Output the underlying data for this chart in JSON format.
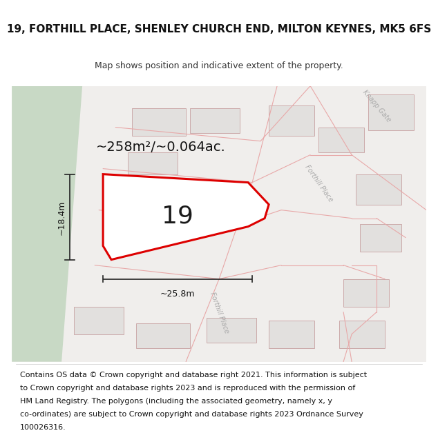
{
  "title": "19, FORTHILL PLACE, SHENLEY CHURCH END, MILTON KEYNES, MK5 6FS",
  "subtitle": "Map shows position and indicative extent of the property.",
  "area_text": "~258m²/~0.064ac.",
  "width_label": "~25.8m",
  "height_label": "~18.4m",
  "number_label": "19",
  "footer_line1": "Contains OS data © Crown copyright and database right 2021. This information is subject",
  "footer_line2": "to Crown copyright and database rights 2023 and is reproduced with the permission of",
  "footer_line3": "HM Land Registry. The polygons (including the associated geometry, namely x, y",
  "footer_line4": "co-ordinates) are subject to Crown copyright and database rights 2023 Ordnance Survey",
  "footer_line5": "100026316.",
  "bg": "#ffffff",
  "map_bg": "#f0eeec",
  "green_color": "#c8d9c5",
  "road_fill": "#f5eded",
  "road_line": "#e8a8a8",
  "bld_fill": "#e2e0de",
  "bld_edge": "#ccaaaa",
  "prop_edge": "#dd0000",
  "prop_fill": "#ffffff",
  "dim_color": "#222222",
  "street_label_color": "#aaaaaa",
  "title_fs": 11,
  "subtitle_fs": 9,
  "area_fs": 14,
  "num_fs": 26,
  "dim_fs": 9,
  "footer_fs": 8.0,
  "prop_lw": 2.2
}
